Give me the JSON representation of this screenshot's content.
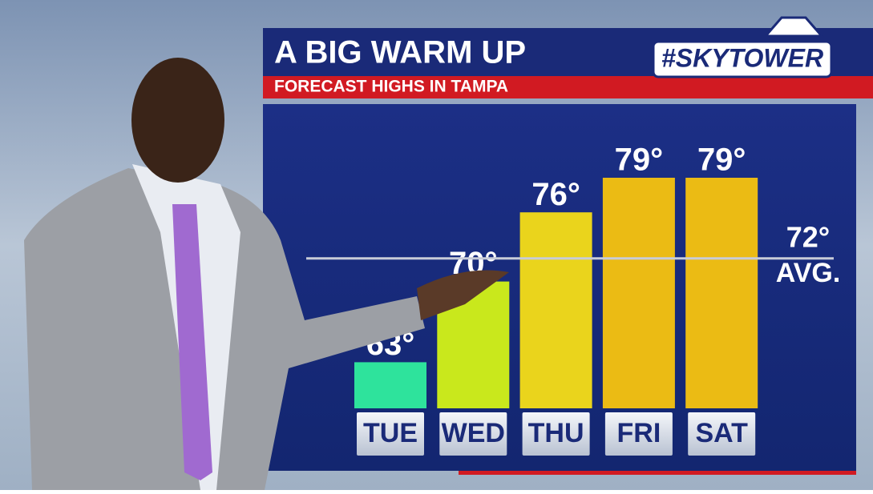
{
  "chart_data": {
    "type": "bar",
    "title": "A BIG WARM UP",
    "subtitle": "FORECAST HIGHS IN TAMPA",
    "logo": "#SKYTOWER",
    "categories": [
      "TUE",
      "WED",
      "THU",
      "FRI",
      "SAT"
    ],
    "values": [
      63,
      70,
      76,
      79,
      79
    ],
    "value_labels": [
      "63°",
      "70°",
      "76°",
      "79°",
      "79°"
    ],
    "colors": [
      "#2ee39c",
      "#c9e81c",
      "#ead41c",
      "#ebbb14",
      "#ebbb14"
    ],
    "ylim": [
      59,
      84
    ],
    "reference": {
      "value": 72,
      "value_label": "72°",
      "label": "AVG."
    }
  }
}
